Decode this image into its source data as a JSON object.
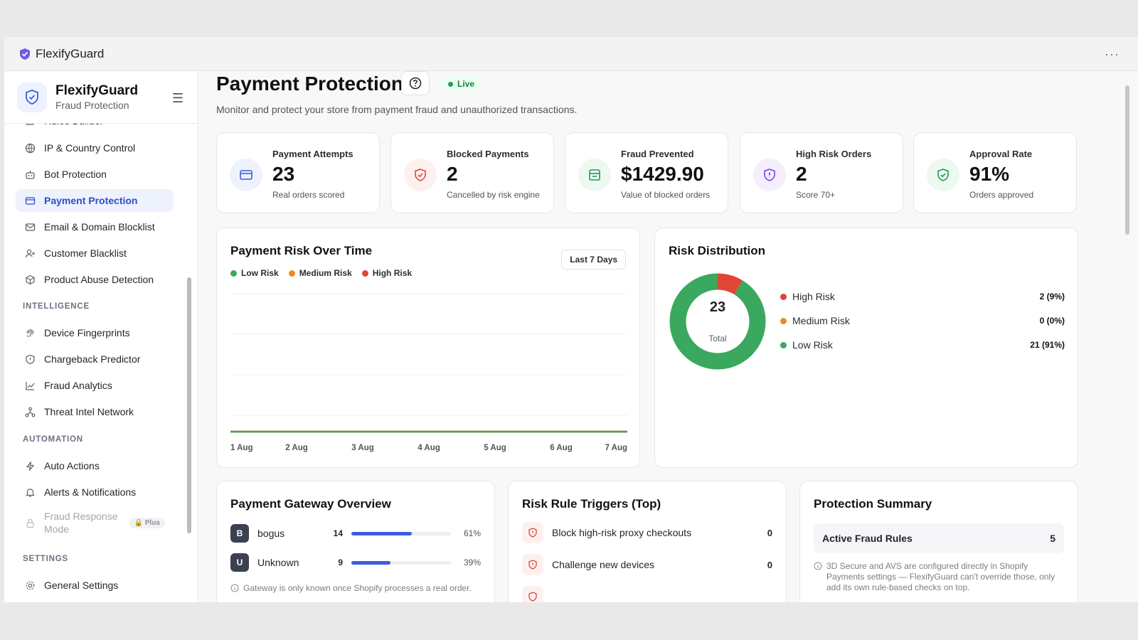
{
  "app": {
    "title": "FlexifyGuard",
    "more": "···"
  },
  "sidebar": {
    "brand": "FlexifyGuard",
    "brand_sub": "Fraud Protection",
    "partial_item": "Rules Builder",
    "items": [
      {
        "label": "IP & Country Control",
        "icon": "globe-icon"
      },
      {
        "label": "Bot Protection",
        "icon": "bot-icon"
      },
      {
        "label": "Payment Protection",
        "icon": "card-icon",
        "active": true
      },
      {
        "label": "Email & Domain Blocklist",
        "icon": "mail-icon"
      },
      {
        "label": "Customer Blacklist",
        "icon": "user-x-icon"
      },
      {
        "label": "Product Abuse Detection",
        "icon": "box-icon"
      }
    ],
    "section_intelligence": "INTELLIGENCE",
    "intelligence": [
      {
        "label": "Device Fingerprints",
        "icon": "fingerprint-icon"
      },
      {
        "label": "Chargeback Predictor",
        "icon": "shield-icon"
      },
      {
        "label": "Fraud Analytics",
        "icon": "chart-icon"
      },
      {
        "label": "Threat Intel Network",
        "icon": "network-icon"
      }
    ],
    "section_automation": "AUTOMATION",
    "automation": [
      {
        "label": "Auto Actions",
        "icon": "bolt-icon"
      },
      {
        "label": "Alerts & Notifications",
        "icon": "bell-icon"
      }
    ],
    "locked_item": {
      "label_line1": "Fraud Response",
      "label_line2": "Mode",
      "badge": "Plus"
    },
    "section_settings": "SETTINGS",
    "settings": [
      {
        "label": "General Settings",
        "icon": "gear-icon"
      }
    ]
  },
  "header": {
    "title": "Payment Protection",
    "status": "Live",
    "subtitle": "Monitor and protect your store from payment fraud and unauthorized transactions."
  },
  "stats": [
    {
      "label": "Payment Attempts",
      "value": "23",
      "note": "Real orders scored",
      "color": "#3c5ce0",
      "bg": "#eef2fd"
    },
    {
      "label": "Blocked Payments",
      "value": "2",
      "note": "Cancelled by risk engine",
      "color": "#d9473a",
      "bg": "#fdf1f0"
    },
    {
      "label": "Fraud Prevented",
      "value": "$1429.90",
      "note": "Value of blocked orders",
      "color": "#1f9a52",
      "bg": "#edf8f1"
    },
    {
      "label": "High Risk Orders",
      "value": "2",
      "note": "Score 70+",
      "color": "#7c3aed",
      "bg": "#f4effd"
    },
    {
      "label": "Approval Rate",
      "value": "91%",
      "note": "Orders approved",
      "color": "#1f9a52",
      "bg": "#edf8f1"
    }
  ],
  "risk_over_time": {
    "title": "Payment Risk Over Time",
    "range": "Last 7 Days",
    "legend": [
      {
        "label": "Low Risk",
        "color": "#3aa85e"
      },
      {
        "label": "Medium Risk",
        "color": "#ef8a22"
      },
      {
        "label": "High Risk",
        "color": "#e04535"
      }
    ]
  },
  "risk_distribution": {
    "title": "Risk Distribution",
    "total": "23",
    "total_label": "Total",
    "rows": [
      {
        "label": "High Risk",
        "value": "2 (9%)",
        "color": "#e04535"
      },
      {
        "label": "Medium Risk",
        "value": "0 (0%)",
        "color": "#ef8a22"
      },
      {
        "label": "Low Risk",
        "value": "21 (91%)",
        "color": "#3aa85e"
      }
    ]
  },
  "chart_data": [
    {
      "type": "line",
      "title": "Payment Risk Over Time",
      "x": [
        "1 Aug",
        "2 Aug",
        "3 Aug",
        "4 Aug",
        "5 Aug",
        "6 Aug",
        "7 Aug"
      ],
      "series": [
        {
          "name": "Low Risk",
          "values": [
            0,
            0,
            0,
            0,
            0,
            0,
            0
          ],
          "color": "#3aa85e"
        },
        {
          "name": "Medium Risk",
          "values": [
            0,
            0,
            0,
            0,
            0,
            0,
            0
          ],
          "color": "#ef8a22"
        },
        {
          "name": "High Risk",
          "values": [
            0,
            0,
            0,
            0,
            0,
            0,
            0
          ],
          "color": "#e04535"
        }
      ],
      "grid": true,
      "legend": "top-left"
    },
    {
      "type": "pie",
      "title": "Risk Distribution",
      "categories": [
        "High Risk",
        "Medium Risk",
        "Low Risk"
      ],
      "values": [
        2,
        0,
        21
      ],
      "colors": [
        "#e04535",
        "#ef8a22",
        "#3aa85e"
      ],
      "center_value": "23",
      "center_label": "Total"
    }
  ],
  "gateway": {
    "title": "Payment Gateway Overview",
    "rows": [
      {
        "initial": "B",
        "name": "bogus",
        "count": "14",
        "pct": "61%",
        "share": 0.61
      },
      {
        "initial": "U",
        "name": "Unknown",
        "count": "9",
        "pct": "39%",
        "share": 0.39
      }
    ],
    "note": "Gateway is only known once Shopify processes a real order."
  },
  "rules": {
    "title": "Risk Rule Triggers (Top)",
    "rows": [
      {
        "label": "Block high-risk proxy checkouts",
        "count": "0"
      },
      {
        "label": "Challenge new devices",
        "count": "0"
      }
    ]
  },
  "summary": {
    "title": "Protection Summary",
    "row_label": "Active Fraud Rules",
    "row_value": "5",
    "note": "3D Secure and AVS are configured directly in Shopify Payments settings — FlexifyGuard can't override those, only add its own rule-based checks on top."
  }
}
